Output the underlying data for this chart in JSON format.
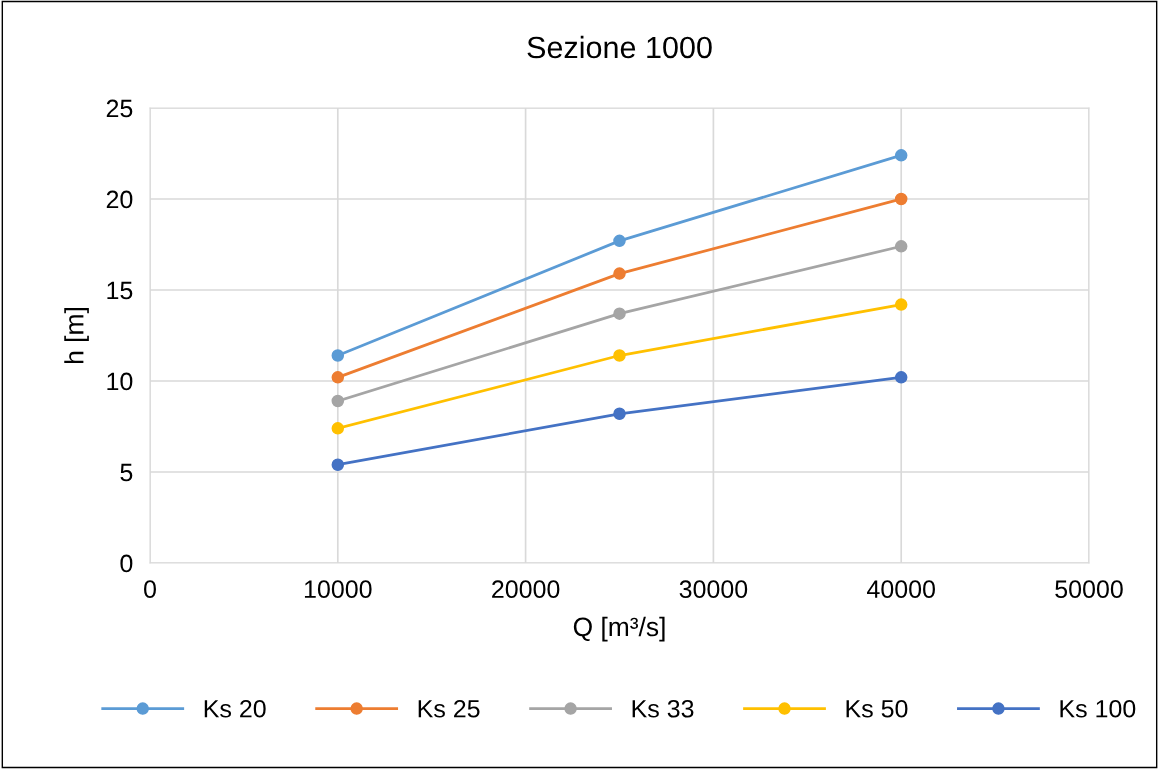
{
  "chart_data": {
    "type": "line",
    "title": "Sezione 1000",
    "xlabel": "Q [m³/s]",
    "ylabel": "h [m]",
    "x": [
      10000,
      25000,
      40000
    ],
    "series": [
      {
        "name": "Ks 20",
        "color": "#5b9bd5",
        "values": [
          11.4,
          17.7,
          22.4
        ]
      },
      {
        "name": "Ks 25",
        "color": "#ed7d31",
        "values": [
          10.2,
          15.9,
          20.0
        ]
      },
      {
        "name": "Ks 33",
        "color": "#a5a5a5",
        "values": [
          8.9,
          13.7,
          17.4
        ]
      },
      {
        "name": "Ks 50",
        "color": "#ffc000",
        "values": [
          7.4,
          11.4,
          14.2
        ]
      },
      {
        "name": "Ks 100",
        "color": "#4472c4",
        "values": [
          5.4,
          8.2,
          10.2
        ]
      }
    ],
    "xlim": [
      0,
      50000
    ],
    "xticks": [
      0,
      10000,
      20000,
      30000,
      40000,
      50000
    ],
    "ylim": [
      0,
      25
    ],
    "yticks": [
      0,
      5,
      10,
      15,
      20,
      25
    ],
    "grid": true,
    "legend": "bottom",
    "marker": "circle",
    "line_style": "solid"
  }
}
